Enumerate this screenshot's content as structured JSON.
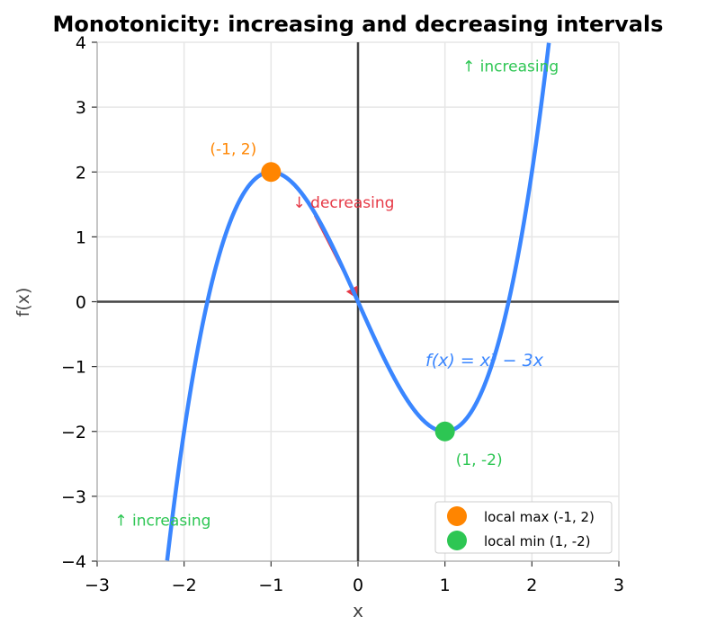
{
  "chart_data": {
    "type": "line",
    "title": "Monotonicity: increasing and decreasing intervals",
    "xlabel": "x",
    "ylabel": "f(x)",
    "xlim": [
      -3,
      3
    ],
    "ylim": [
      -4,
      4
    ],
    "grid": true,
    "xticks": [
      -3,
      -2,
      -1,
      0,
      1,
      2,
      3
    ],
    "yticks": [
      -4,
      -3,
      -2,
      -1,
      0,
      1,
      2,
      3,
      4
    ],
    "xtick_labels": [
      "−3",
      "−2",
      "−1",
      "0",
      "1",
      "2",
      "3"
    ],
    "ytick_labels": [
      "−4",
      "−3",
      "−2",
      "−1",
      "0",
      "1",
      "2",
      "3",
      "4"
    ],
    "series": [
      {
        "label": "f(x) = x³ − 3x",
        "function": "x^3 - 3x",
        "color": "#3a86ff",
        "x_range": [
          -3,
          3
        ]
      }
    ],
    "points": [
      {
        "name": "local max (-1, 2)",
        "x": -1,
        "y": 2,
        "color": "#ff8500",
        "label": "(-1, 2)"
      },
      {
        "name": "local min (1, -2)",
        "x": 1,
        "y": -2,
        "color": "#2dc653",
        "label": "(1, -2)"
      }
    ],
    "annotations": [
      {
        "text": "↑ increasing",
        "x": 1.2,
        "y": 3.55,
        "color": "#2dc653"
      },
      {
        "text": "↑ increasing",
        "x": -2.8,
        "y": -3.45,
        "color": "#2dc653"
      },
      {
        "text": "↓ decreasing",
        "x": -0.75,
        "y": 1.45,
        "color": "#e63946"
      }
    ],
    "arrow": {
      "from": [
        -0.5,
        1.33
      ],
      "to": [
        -0.02,
        0.07
      ],
      "color": "#e63946"
    },
    "legend": {
      "position": "bottom-right",
      "entries": [
        "local max (-1, 2)",
        "local min (1, -2)"
      ]
    }
  }
}
